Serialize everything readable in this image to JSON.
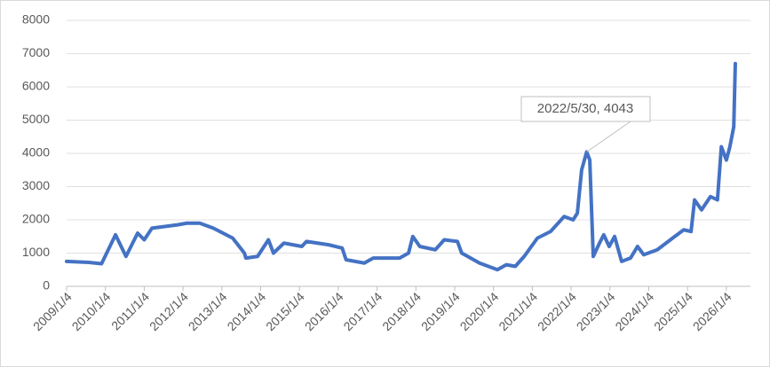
{
  "chart_data": {
    "type": "line",
    "x": [
      2009.0,
      2009.57,
      2009.9,
      2010.26,
      2010.53,
      2010.83,
      2011.0,
      2011.2,
      2011.86,
      2012.1,
      2012.43,
      2012.78,
      2013.28,
      2013.58,
      2013.62,
      2013.92,
      2014.2,
      2014.33,
      2014.6,
      2015.06,
      2015.18,
      2015.75,
      2016.1,
      2016.2,
      2016.67,
      2016.9,
      2017.58,
      2017.81,
      2017.92,
      2018.1,
      2018.5,
      2018.73,
      2019.07,
      2019.18,
      2019.64,
      2019.87,
      2020.1,
      2020.33,
      2020.56,
      2020.79,
      2021.13,
      2021.47,
      2021.82,
      2022.05,
      2022.16,
      2022.27,
      2022.4,
      2022.48,
      2022.52,
      2022.57,
      2022.73,
      2022.84,
      2022.98,
      2023.12,
      2023.3,
      2023.53,
      2023.71,
      2023.87,
      2024.22,
      2024.67,
      2024.9,
      2025.09,
      2025.18,
      2025.36,
      2025.59,
      2025.77,
      2025.87,
      2026.0,
      2026.09,
      2026.19,
      2026.23
    ],
    "series": [
      {
        "color": "#4472c4",
        "values": [
          750,
          720,
          680,
          1550,
          900,
          1600,
          1400,
          1750,
          1850,
          1900,
          1900,
          1750,
          1450,
          1000,
          850,
          900,
          1400,
          1000,
          1300,
          1200,
          1350,
          1250,
          1150,
          800,
          700,
          850,
          850,
          1000,
          1500,
          1200,
          1100,
          1400,
          1350,
          1000,
          700,
          600,
          500,
          650,
          600,
          900,
          1450,
          1650,
          2100,
          2000,
          2200,
          3500,
          4043,
          3800,
          2500,
          900,
          1300,
          1550,
          1200,
          1500,
          750,
          850,
          1200,
          950,
          1100,
          1500,
          1700,
          1650,
          2600,
          2300,
          2700,
          2600,
          4200,
          3800,
          4200,
          4800,
          6700
        ]
      }
    ],
    "xlim": [
      2009,
      2026.3
    ],
    "xticks": [
      {
        "value": 2009,
        "label": "2009/1/4"
      },
      {
        "value": 2010,
        "label": "2010/1/4"
      },
      {
        "value": 2011,
        "label": "2011/1/4"
      },
      {
        "value": 2012,
        "label": "2012/1/4"
      },
      {
        "value": 2013,
        "label": "2013/1/4"
      },
      {
        "value": 2014,
        "label": "2014/1/4"
      },
      {
        "value": 2015,
        "label": "2015/1/4"
      },
      {
        "value": 2016,
        "label": "2016/1/4"
      },
      {
        "value": 2017,
        "label": "2017/1/4"
      },
      {
        "value": 2018,
        "label": "2018/1/4"
      },
      {
        "value": 2019,
        "label": "2019/1/4"
      },
      {
        "value": 2020,
        "label": "2020/1/4"
      },
      {
        "value": 2021,
        "label": "2021/1/4"
      },
      {
        "value": 2022,
        "label": "2022/1/4"
      },
      {
        "value": 2023,
        "label": "2023/1/4"
      },
      {
        "value": 2024,
        "label": "2024/1/4"
      },
      {
        "value": 2025,
        "label": "2025/1/4"
      },
      {
        "value": 2026,
        "label": "2026/1/4"
      }
    ],
    "ylim": [
      0,
      8000
    ],
    "yticks": [
      0,
      1000,
      2000,
      3000,
      4000,
      5000,
      6000,
      7000,
      8000
    ],
    "grid": true,
    "annotation": "2022/5/30, 4043"
  }
}
